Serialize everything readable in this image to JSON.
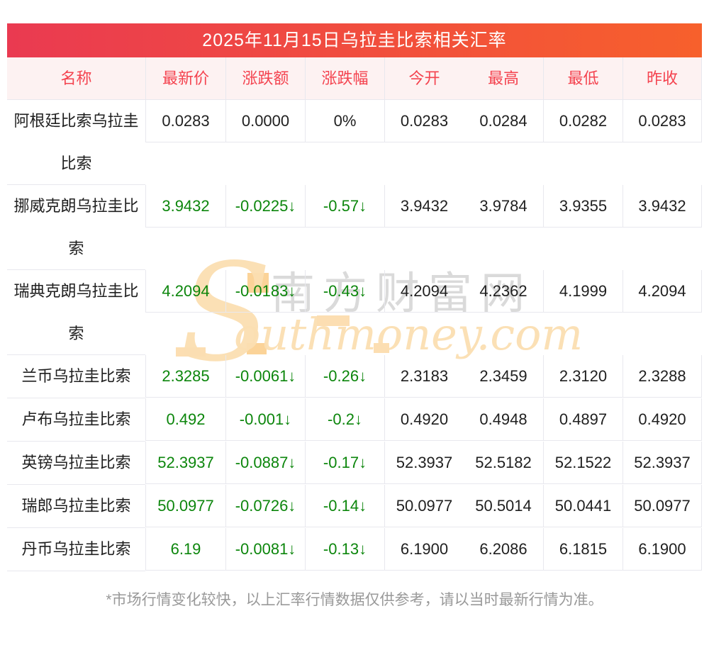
{
  "page": {
    "title": "2025年11月15日乌拉圭比索相关汇率",
    "footnote": "*市场行情变化较快，以上汇率行情数据仅供参考，请以当时最新行情为准。"
  },
  "table": {
    "columns": [
      "名称",
      "最新价",
      "涨跌额",
      "涨跌幅",
      "今开",
      "最高",
      "最低",
      "昨收"
    ],
    "rows": [
      {
        "name": "阿根廷比索乌拉圭比索",
        "latest": "0.0283",
        "change": "0.0000",
        "change_pct": "0%",
        "open": "0.0283",
        "high": "0.0284",
        "low": "0.0282",
        "prev_close": "0.0283",
        "trend": "flat"
      },
      {
        "name": "挪威克朗乌拉圭比索",
        "latest": "3.9432",
        "change": "-0.0225↓",
        "change_pct": "-0.57↓",
        "open": "3.9432",
        "high": "3.9784",
        "low": "3.9355",
        "prev_close": "3.9432",
        "trend": "down"
      },
      {
        "name": "瑞典克朗乌拉圭比索",
        "latest": "4.2094",
        "change": "-0.0183↓",
        "change_pct": "-0.43↓",
        "open": "4.2094",
        "high": "4.2362",
        "low": "4.1999",
        "prev_close": "4.2094",
        "trend": "down"
      },
      {
        "name": "兰币乌拉圭比索",
        "latest": "2.3285",
        "change": "-0.0061↓",
        "change_pct": "-0.26↓",
        "open": "2.3183",
        "high": "2.3459",
        "low": "2.3120",
        "prev_close": "2.3288",
        "trend": "down"
      },
      {
        "name": "卢布乌拉圭比索",
        "latest": "0.492",
        "change": "-0.001↓",
        "change_pct": "-0.2↓",
        "open": "0.4920",
        "high": "0.4948",
        "low": "0.4897",
        "prev_close": "0.4920",
        "trend": "down"
      },
      {
        "name": "英镑乌拉圭比索",
        "latest": "52.3937",
        "change": "-0.0887↓",
        "change_pct": "-0.17↓",
        "open": "52.3937",
        "high": "52.5182",
        "low": "52.1522",
        "prev_close": "52.3937",
        "trend": "down"
      },
      {
        "name": "瑞郎乌拉圭比索",
        "latest": "50.0977",
        "change": "-0.0726↓",
        "change_pct": "-0.14↓",
        "open": "50.0977",
        "high": "50.5014",
        "low": "50.0441",
        "prev_close": "50.0977",
        "trend": "down"
      },
      {
        "name": "丹币乌拉圭比索",
        "latest": "6.19",
        "change": "-0.0081↓",
        "change_pct": "-0.13↓",
        "open": "6.1900",
        "high": "6.2086",
        "low": "6.1815",
        "prev_close": "6.1900",
        "trend": "down"
      }
    ]
  },
  "watermark": {
    "s_glyph": "S",
    "cn": "南方财富网",
    "en": "outhmoney.com"
  },
  "colors": {
    "title_gradient_left": "#ea3a51",
    "title_gradient_right": "#f7602c",
    "header_bg": "#fdf2f2",
    "header_text": "#f4434f",
    "down_green": "#0c860c",
    "body_text": "#1f1f1f",
    "grid_border": "#e8e8ee",
    "footnote_text": "#999999",
    "watermark_orange": "#fbdfb2",
    "watermark_gray": "#d6d6d6"
  }
}
